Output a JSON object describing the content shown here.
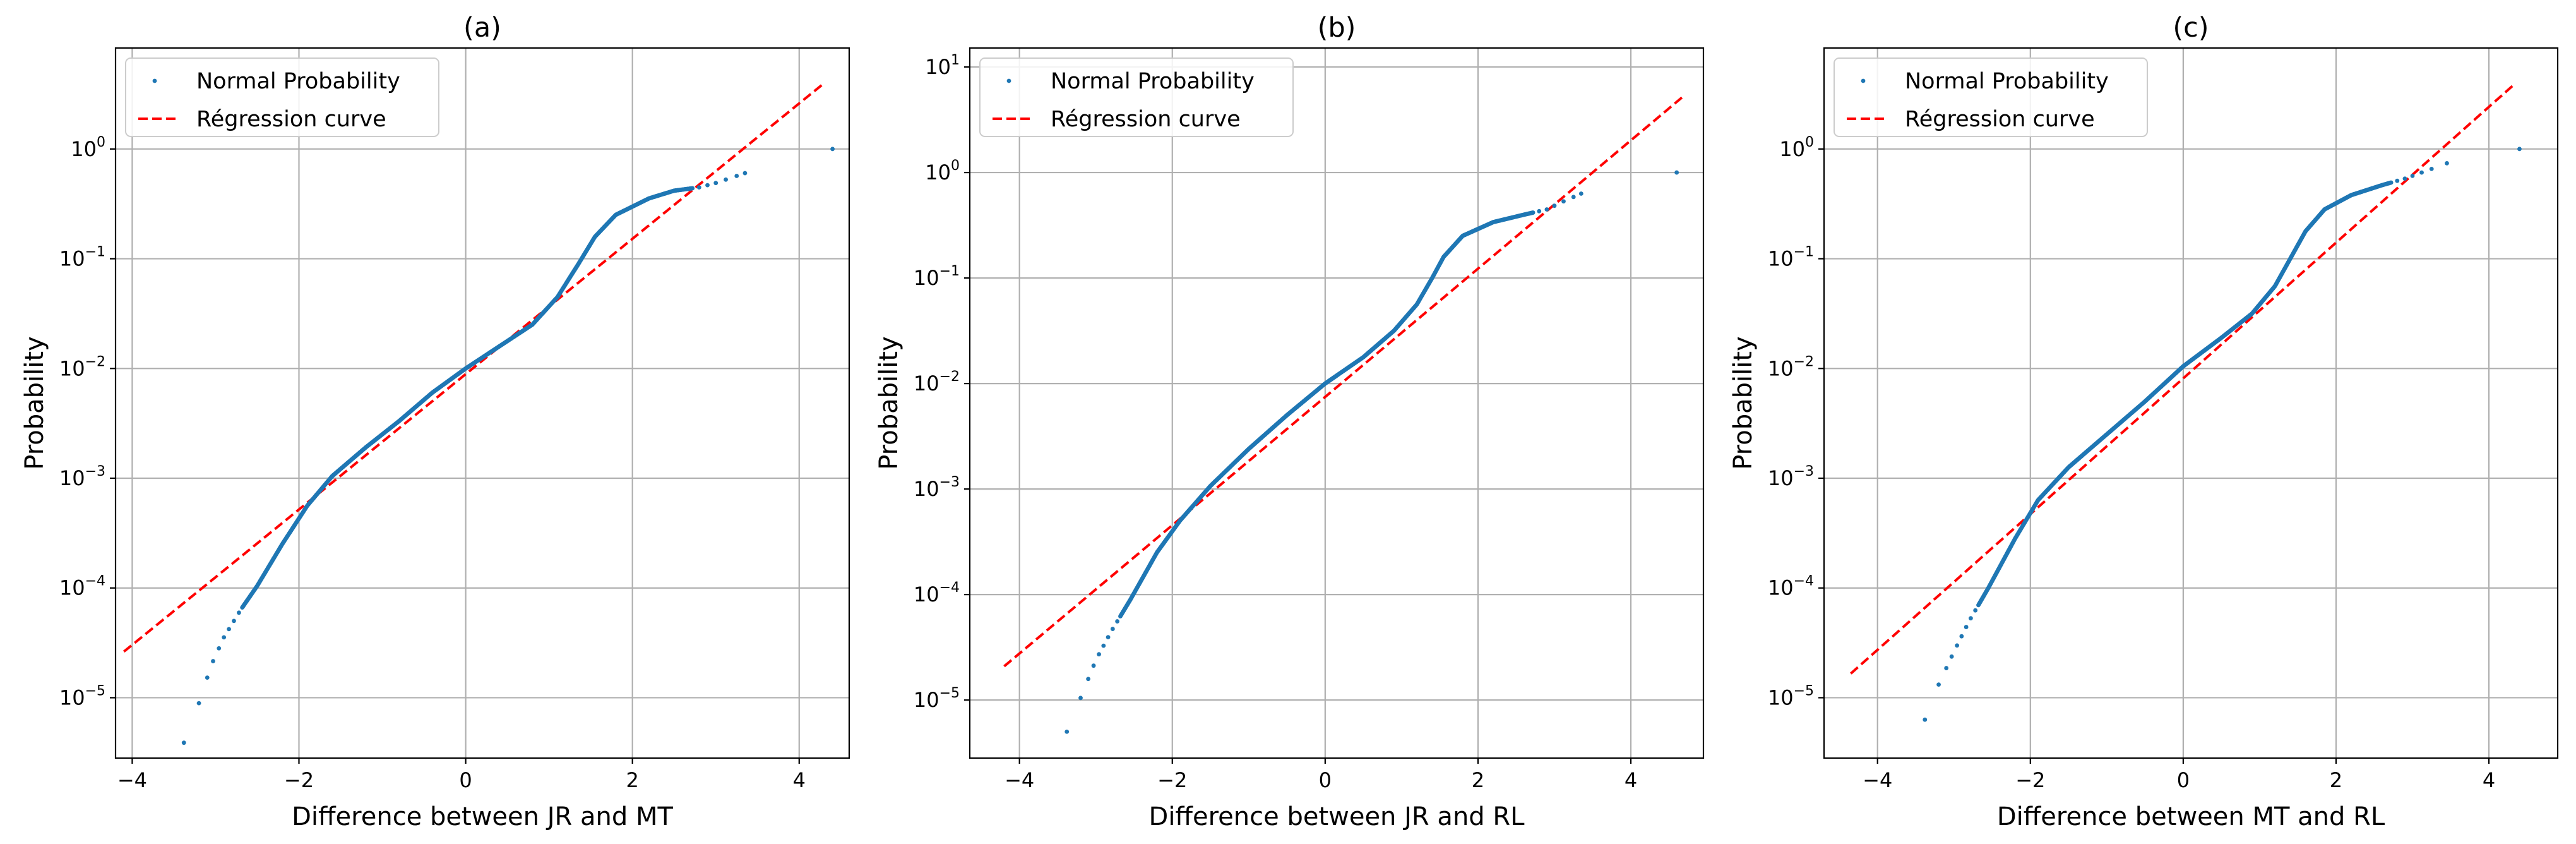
{
  "chart_data": [
    {
      "type": "scatter",
      "title": "(a)",
      "xlabel": "Difference between JR and MT",
      "ylabel": "Probability",
      "yscale": "log",
      "xlim": [
        -4.2,
        4.6
      ],
      "ylim_exp": [
        -5.55,
        0.92
      ],
      "xticks": [
        -4,
        -2,
        0,
        2,
        4
      ],
      "xtick_labels": [
        "−4",
        "−2",
        "0",
        "2",
        "4"
      ],
      "yticks_exp": [
        -5,
        -4,
        -3,
        -2,
        -1,
        0
      ],
      "legend": {
        "placement": "upper-left",
        "entries": [
          "Normal Probability",
          "Régression curve"
        ]
      },
      "grid": true,
      "series": [
        {
          "name": "Normal Probability",
          "kind": "points",
          "anchors": [
            [
              -3.38,
              -5.41
            ],
            [
              -3.2,
              -5.05
            ],
            [
              -3.05,
              -4.7
            ],
            [
              -2.9,
              -4.45
            ],
            [
              -2.7,
              -4.2
            ],
            [
              -2.5,
              -3.98
            ],
            [
              -2.2,
              -3.6
            ],
            [
              -1.9,
              -3.25
            ],
            [
              -1.6,
              -2.98
            ],
            [
              -1.2,
              -2.72
            ],
            [
              -0.8,
              -2.48
            ],
            [
              -0.4,
              -2.22
            ],
            [
              0.0,
              -2.0
            ],
            [
              0.4,
              -1.8
            ],
            [
              0.8,
              -1.6
            ],
            [
              1.1,
              -1.35
            ],
            [
              1.35,
              -1.05
            ],
            [
              1.55,
              -0.8
            ],
            [
              1.8,
              -0.6
            ],
            [
              2.2,
              -0.45
            ],
            [
              2.5,
              -0.38
            ],
            [
              2.8,
              -0.35
            ],
            [
              3.0,
              -0.31
            ],
            [
              3.35,
              -0.22
            ]
          ],
          "outliers": [
            [
              4.4,
              0.0
            ]
          ]
        },
        {
          "name": "Régression curve",
          "kind": "line",
          "points": [
            [
              -4.1,
              -4.58
            ],
            [
              4.3,
              0.6
            ]
          ]
        }
      ]
    },
    {
      "type": "scatter",
      "title": "(b)",
      "xlabel": "Difference between JR and RL",
      "ylabel": "Probability",
      "yscale": "log",
      "xlim": [
        -4.65,
        4.95
      ],
      "ylim_exp": [
        -5.55,
        1.18
      ],
      "xticks": [
        -4,
        -2,
        0,
        2,
        4
      ],
      "xtick_labels": [
        "−4",
        "−2",
        "0",
        "2",
        "4"
      ],
      "yticks_exp": [
        -5,
        -4,
        -3,
        -2,
        -1,
        0,
        1
      ],
      "legend": {
        "placement": "upper-left",
        "entries": [
          "Normal Probability",
          "Régression curve"
        ]
      },
      "grid": true,
      "series": [
        {
          "name": "Normal Probability",
          "kind": "points",
          "anchors": [
            [
              -3.38,
              -5.3
            ],
            [
              -3.2,
              -4.98
            ],
            [
              -3.0,
              -4.62
            ],
            [
              -2.8,
              -4.35
            ],
            [
              -2.55,
              -4.05
            ],
            [
              -2.2,
              -3.6
            ],
            [
              -1.9,
              -3.3
            ],
            [
              -1.5,
              -2.97
            ],
            [
              -1.0,
              -2.62
            ],
            [
              -0.5,
              -2.3
            ],
            [
              0.0,
              -2.0
            ],
            [
              0.5,
              -1.75
            ],
            [
              0.9,
              -1.5
            ],
            [
              1.2,
              -1.25
            ],
            [
              1.4,
              -1.0
            ],
            [
              1.55,
              -0.8
            ],
            [
              1.8,
              -0.6
            ],
            [
              2.2,
              -0.47
            ],
            [
              2.6,
              -0.4
            ],
            [
              2.9,
              -0.35
            ],
            [
              3.1,
              -0.28
            ],
            [
              3.35,
              -0.2
            ]
          ],
          "outliers": [
            [
              4.6,
              0.0
            ]
          ]
        },
        {
          "name": "Régression curve",
          "kind": "line",
          "points": [
            [
              -4.2,
              -4.68
            ],
            [
              4.7,
              0.73
            ]
          ]
        }
      ]
    },
    {
      "type": "scatter",
      "title": "(c)",
      "xlabel": "Difference between MT and RL",
      "ylabel": "Probability",
      "yscale": "log",
      "xlim": [
        -4.7,
        4.9
      ],
      "ylim_exp": [
        -5.55,
        0.92
      ],
      "xticks": [
        -4,
        -2,
        0,
        2,
        4
      ],
      "xtick_labels": [
        "−4",
        "−2",
        "0",
        "2",
        "4"
      ],
      "yticks_exp": [
        -5,
        -4,
        -3,
        -2,
        -1,
        0
      ],
      "legend": {
        "placement": "upper-left",
        "entries": [
          "Normal Probability",
          "Régression curve"
        ]
      },
      "grid": true,
      "series": [
        {
          "name": "Normal Probability",
          "kind": "points",
          "anchors": [
            [
              -3.38,
              -5.2
            ],
            [
              -3.2,
              -4.88
            ],
            [
              -3.0,
              -4.58
            ],
            [
              -2.8,
              -4.3
            ],
            [
              -2.55,
              -4.0
            ],
            [
              -2.2,
              -3.55
            ],
            [
              -1.9,
              -3.2
            ],
            [
              -1.5,
              -2.9
            ],
            [
              -1.0,
              -2.6
            ],
            [
              -0.5,
              -2.3
            ],
            [
              0.0,
              -1.98
            ],
            [
              0.5,
              -1.72
            ],
            [
              0.9,
              -1.5
            ],
            [
              1.2,
              -1.25
            ],
            [
              1.4,
              -1.0
            ],
            [
              1.6,
              -0.75
            ],
            [
              1.85,
              -0.55
            ],
            [
              2.2,
              -0.42
            ],
            [
              2.6,
              -0.33
            ],
            [
              2.9,
              -0.27
            ],
            [
              3.1,
              -0.22
            ],
            [
              3.45,
              -0.13
            ]
          ],
          "outliers": [
            [
              4.4,
              0.0
            ]
          ]
        },
        {
          "name": "Régression curve",
          "kind": "line",
          "points": [
            [
              -4.35,
              -4.78
            ],
            [
              4.35,
              0.6
            ]
          ]
        }
      ]
    }
  ]
}
